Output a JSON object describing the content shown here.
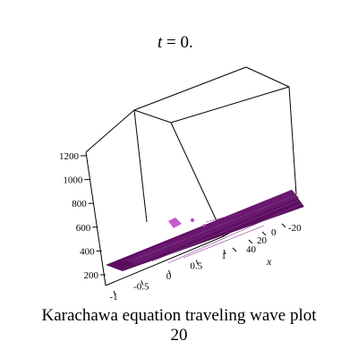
{
  "figure": {
    "title_var": "t",
    "title_rest": " = 0.",
    "caption_line1": "Karachawa equation  traveling wave plot",
    "caption_line2": "20"
  },
  "chart_data": {
    "type": "surface",
    "title": "t = 0.",
    "x_axis": {
      "label": "x",
      "ticks": [
        "-20",
        "0",
        "20",
        "40"
      ]
    },
    "y_axis": {
      "label": "",
      "ticks": [
        "1",
        "0.5",
        "0",
        "-0.5",
        "-1"
      ]
    },
    "z_axis": {
      "label": "",
      "ticks": [
        "200",
        "400",
        "600",
        "800",
        "1000",
        "1200"
      ],
      "range": [
        200,
        1200
      ]
    },
    "surface_color": "#5a0f5e",
    "surface_edge_color": "#b04ab8",
    "grid": false,
    "box": true
  }
}
